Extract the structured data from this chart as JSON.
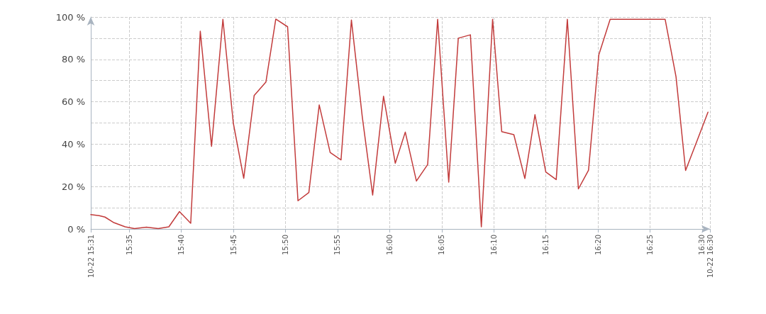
{
  "chart_data": {
    "type": "line",
    "x": [
      15.5218,
      15.5352,
      15.5445,
      15.5578,
      15.5768,
      15.5918,
      15.6108,
      15.6297,
      15.6467,
      15.6637,
      15.6817,
      15.697,
      15.715,
      15.7332,
      15.7498,
      15.7665,
      15.7832,
      15.802,
      15.8178,
      15.8367,
      15.8533,
      15.8707,
      15.8873,
      15.9048,
      15.9222,
      15.9388,
      15.9562,
      15.9728,
      15.9902,
      16.009,
      16.025,
      16.0428,
      16.0608,
      16.0768,
      16.0945,
      16.1098,
      16.1292,
      16.1467,
      16.1647,
      16.1793,
      16.1987,
      16.2163,
      16.2325,
      16.2498,
      16.2665,
      16.2843,
      16.302,
      16.3182,
      16.3347,
      16.3528,
      16.4408,
      16.4582,
      16.4735,
      16.491,
      16.5093
    ],
    "series": [
      {
        "color": "#c23b3b",
        "values": [
          6.8,
          6.3,
          5.6,
          3.1,
          1,
          0.2,
          0.8,
          0.2,
          1,
          8.2,
          2.7,
          93.3,
          39,
          98.9,
          50,
          23.9,
          63,
          69.3,
          99,
          95.4,
          13.3,
          17.2,
          58.5,
          36.1,
          32.6,
          98.6,
          52.9,
          16,
          62.6,
          31,
          45.7,
          22.6,
          30.4,
          98.9,
          22.1,
          90,
          91.6,
          1,
          98.9,
          45.9,
          44.5,
          23.8,
          53.9,
          26.9,
          23.3,
          98.9,
          18.9,
          27.7,
          82.2,
          98.9,
          98.9,
          71.8,
          27.6,
          41,
          55.1
        ]
      }
    ],
    "xlim": [
      15.5218,
      16.5125
    ],
    "xticks": [
      {
        "value": 15.5218,
        "label": "10-22 15:31"
      },
      {
        "value": 15.5833,
        "label": "15:35"
      },
      {
        "value": 15.6667,
        "label": "15:40"
      },
      {
        "value": 15.75,
        "label": "15:45"
      },
      {
        "value": 15.8333,
        "label": "15:50"
      },
      {
        "value": 15.9167,
        "label": "15:55"
      },
      {
        "value": 16,
        "label": "16:00"
      },
      {
        "value": 16.0833,
        "label": "16:05"
      },
      {
        "value": 16.1667,
        "label": "16:10"
      },
      {
        "value": 16.25,
        "label": "16:15"
      },
      {
        "value": 16.3333,
        "label": "16:20"
      },
      {
        "value": 16.4167,
        "label": "16:25"
      },
      {
        "value": 16.5,
        "label": "16:30"
      },
      {
        "value": 16.5125,
        "label": "10-22 16:30"
      }
    ],
    "ylim": [
      0,
      100
    ],
    "yticks": [
      {
        "value": 0,
        "label": "0 %"
      },
      {
        "value": 10,
        "label": null
      },
      {
        "value": 20,
        "label": "20 %"
      },
      {
        "value": 30,
        "label": null
      },
      {
        "value": 40,
        "label": "40 %"
      },
      {
        "value": 50,
        "label": null
      },
      {
        "value": 60,
        "label": "60 %"
      },
      {
        "value": 70,
        "label": null
      },
      {
        "value": 80,
        "label": "80 %"
      },
      {
        "value": 90,
        "label": null
      },
      {
        "value": 100,
        "label": "100 %"
      }
    ],
    "grid": true,
    "marker": "none",
    "line_style": "solid"
  }
}
